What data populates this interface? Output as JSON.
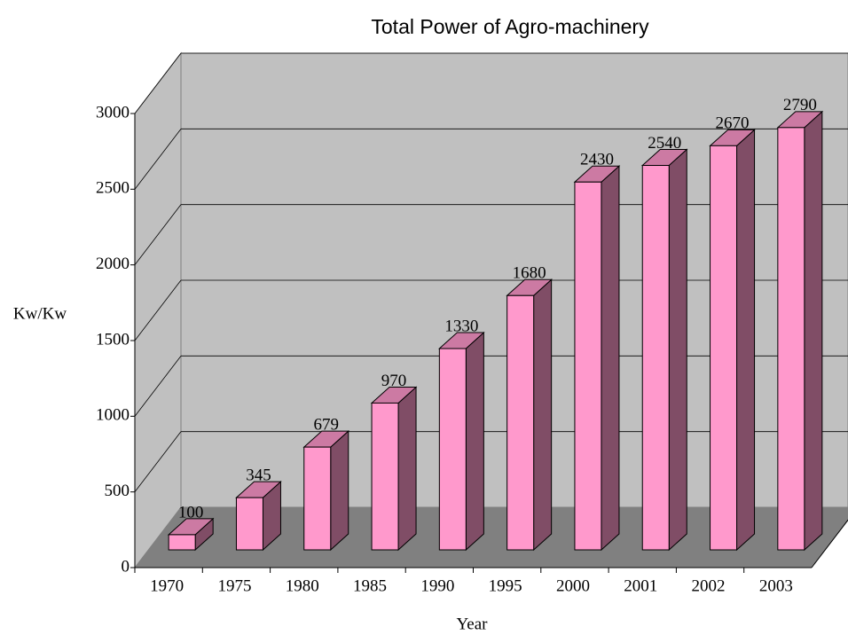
{
  "chart_data": {
    "type": "bar3d",
    "title": "Total Power of Agro-machinery",
    "xlabel": "Year",
    "ylabel": "Kw/Kw",
    "categories": [
      "1970",
      "1975",
      "1980",
      "1985",
      "1990",
      "1995",
      "2000",
      "2001",
      "2002",
      "2003"
    ],
    "values": [
      100,
      345,
      679,
      970,
      1330,
      1680,
      2430,
      2540,
      2670,
      2790
    ],
    "color": "#ff99cc",
    "ylim": [
      0,
      3000
    ],
    "yticks": [
      0,
      500,
      1000,
      1500,
      2000,
      2500,
      3000
    ],
    "grid": true
  }
}
